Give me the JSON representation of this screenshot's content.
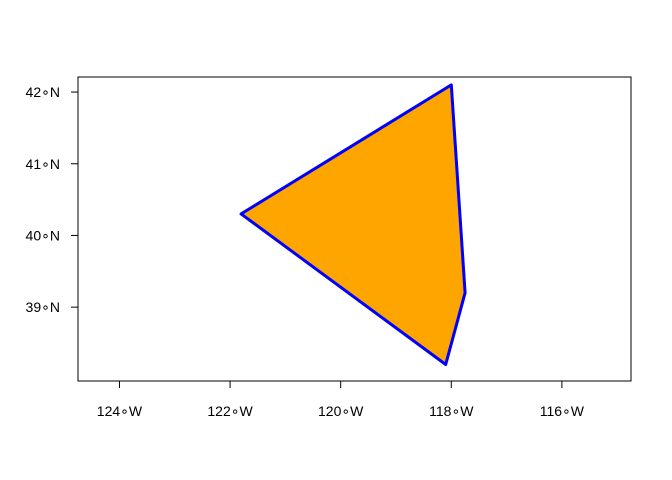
{
  "map": {
    "type": "polygon-on-lonlat-axes",
    "x_axis": {
      "ticks": [
        {
          "value": -124,
          "label": "124∘W"
        },
        {
          "value": -122,
          "label": "122∘W"
        },
        {
          "value": -120,
          "label": "120∘W"
        },
        {
          "value": -118,
          "label": "118∘W"
        },
        {
          "value": -116,
          "label": "116∘W"
        }
      ],
      "range": [
        -124.75,
        -114.75
      ]
    },
    "y_axis": {
      "ticks": [
        {
          "value": 39,
          "label": "39∘N"
        },
        {
          "value": 40,
          "label": "40∘N"
        },
        {
          "value": 41,
          "label": "41∘N"
        },
        {
          "value": 42,
          "label": "42∘N"
        }
      ],
      "range": [
        37.97,
        42.21
      ]
    },
    "polygon": {
      "fill": "#FFA500",
      "stroke": "#0000FF",
      "vertices": [
        {
          "lon": -118.0,
          "lat": 42.1
        },
        {
          "lon": -117.75,
          "lat": 39.2
        },
        {
          "lon": -118.1,
          "lat": 38.2
        },
        {
          "lon": -121.8,
          "lat": 40.3
        }
      ]
    },
    "frame": true
  }
}
